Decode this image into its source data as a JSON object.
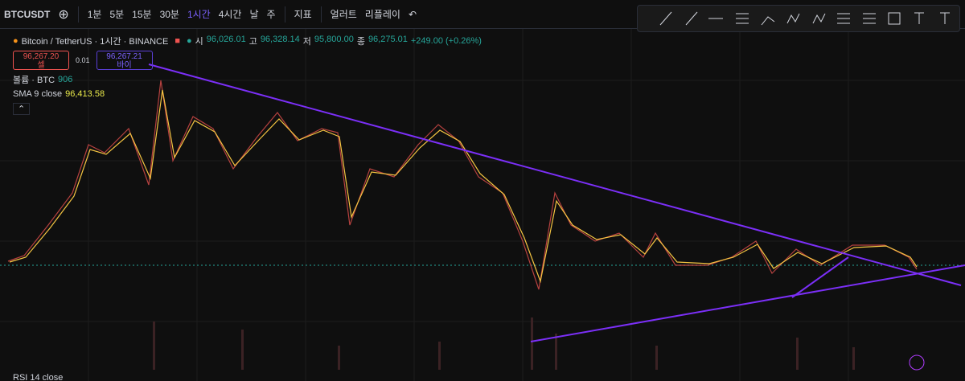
{
  "toolbar": {
    "symbol": "BTCUSDT",
    "intervals": [
      "1분",
      "5분",
      "15분",
      "30분",
      "1시간",
      "4시간",
      "날",
      "주"
    ],
    "active_interval": "1시간",
    "indicators": "지표",
    "alert": "얼러트",
    "replay": "리플레이"
  },
  "legend": {
    "title": "Bitcoin / TetherUS · 1시간 · BINANCE",
    "ohlc": [
      {
        "label": "시",
        "value": "96,026.01"
      },
      {
        "label": "고",
        "value": "96,328.14"
      },
      {
        "label": "저",
        "value": "95,800.00"
      },
      {
        "label": "종",
        "value": "96,275.01"
      }
    ],
    "change": "+249.00 (+0.26%)",
    "sell": {
      "price": "96,267.20",
      "label": "셀"
    },
    "spread": "0.01",
    "buy": {
      "price": "96,267.21",
      "label": "바이"
    },
    "volume": {
      "label": "볼륨 · BTC",
      "value": "906"
    },
    "sma": {
      "label": "SMA 9 close",
      "value": "96,413.58"
    },
    "rsi": {
      "label": "RSI 14 close"
    }
  }
}
